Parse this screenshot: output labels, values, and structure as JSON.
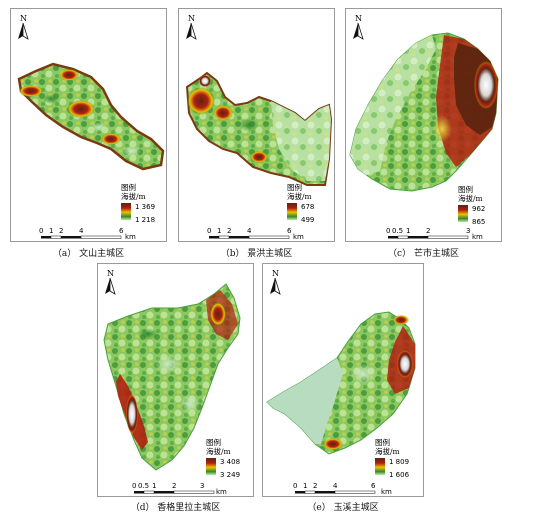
{
  "north_label": "N",
  "legend_title_line1": "图例",
  "legend_title_line2": "海拔/m",
  "scale_unit": "km",
  "colors": {
    "ramp": [
      "#c8e8a0",
      "#2f8a2f",
      "#f0c000",
      "#b02010",
      "#5a2510",
      "#ffffff"
    ],
    "frame": "#9a9a9a"
  },
  "panels": [
    {
      "id": "a",
      "caption": "（a） 文山主城区",
      "legend_max": "1 369",
      "legend_min": "1 218",
      "scale_ticks": [
        "0",
        "1",
        "2",
        "4",
        "6"
      ]
    },
    {
      "id": "b",
      "caption": "（b） 景洪主城区",
      "legend_max": "678",
      "legend_min": "499",
      "scale_ticks": [
        "0",
        "1",
        "2",
        "4",
        "6"
      ]
    },
    {
      "id": "c",
      "caption": "（c） 芒市主城区",
      "legend_max": "962",
      "legend_min": "865",
      "scale_ticks": [
        "0",
        "0.5",
        "1",
        "2",
        "3"
      ]
    },
    {
      "id": "d",
      "caption": "（d） 香格里拉主城区",
      "legend_max": "3 408",
      "legend_min": "3 249",
      "scale_ticks": [
        "0",
        "0.5",
        "1",
        "2",
        "3"
      ]
    },
    {
      "id": "e",
      "caption": "（e） 玉溪主城区",
      "legend_max": "1 809",
      "legend_min": "1 606",
      "scale_ticks": [
        "0",
        "1",
        "2",
        "4",
        "6"
      ]
    }
  ]
}
